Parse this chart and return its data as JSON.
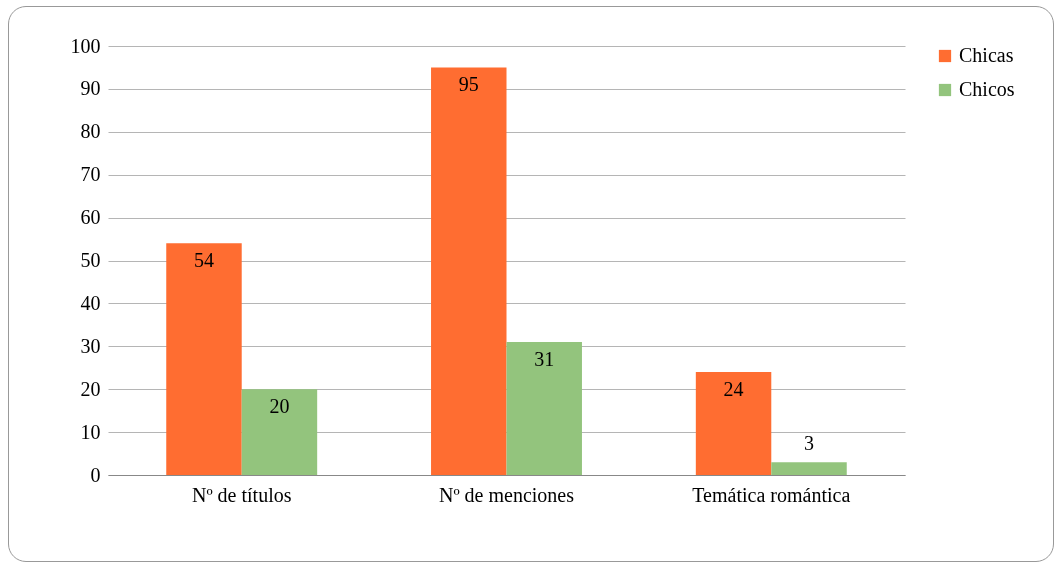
{
  "chart_data": {
    "type": "bar",
    "categories": [
      "Nº de títulos",
      "Nº de menciones",
      "Temática romántica"
    ],
    "series": [
      {
        "name": "Chicas",
        "color": "#ff6d31",
        "values": [
          54,
          95,
          24
        ]
      },
      {
        "name": "Chicos",
        "color": "#93c47d",
        "values": [
          20,
          31,
          3
        ]
      }
    ],
    "ylim": [
      0,
      100
    ],
    "yticks": [
      0,
      10,
      20,
      30,
      40,
      50,
      60,
      70,
      80,
      90,
      100
    ],
    "grid": "y",
    "legend": "right",
    "data_labels": true
  }
}
